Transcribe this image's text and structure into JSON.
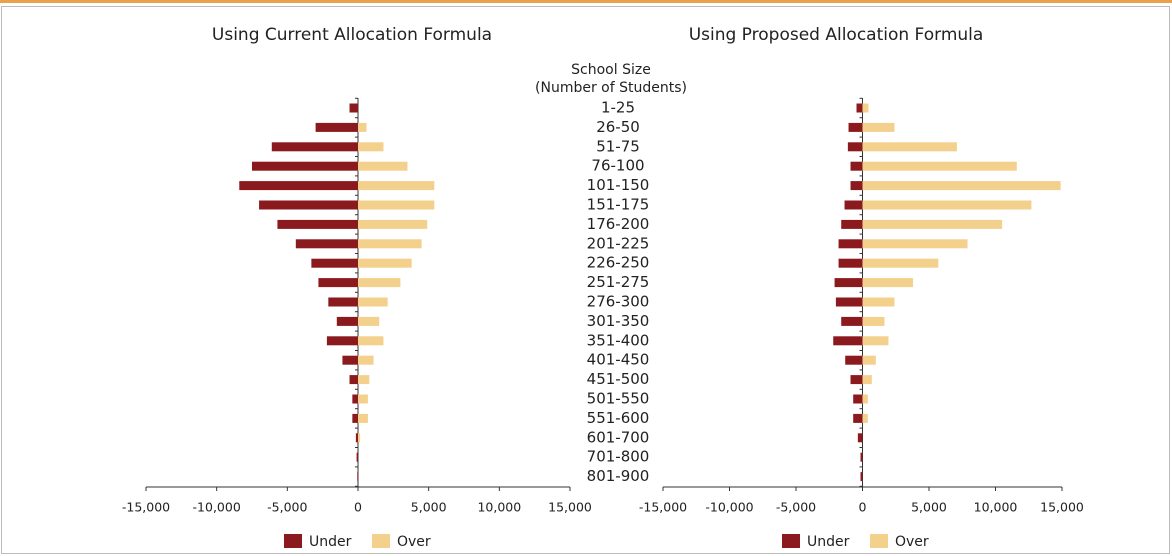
{
  "rows": {
    "title": [
      "School Size",
      "(Number of Students)"
    ],
    "categories": [
      "1-25",
      "26-50",
      "51-75",
      "76-100",
      "101-150",
      "151-175",
      "176-200",
      "201-225",
      "226-250",
      "251-275",
      "276-300",
      "301-350",
      "351-400",
      "401-450",
      "451-500",
      "501-550",
      "551-600",
      "601-700",
      "701-800",
      "801-900"
    ]
  },
  "chart_data": [
    {
      "type": "bar",
      "orientation": "horizontal",
      "title": "Using Current Allocation Formula",
      "series": [
        {
          "name": "Under",
          "color": "#8b1a1f",
          "values": [
            -600,
            -3000,
            -6100,
            -7500,
            -8400,
            -7000,
            -5700,
            -4400,
            -3300,
            -2800,
            -2100,
            -1500,
            -2200,
            -1100,
            -600,
            -400,
            -400,
            -150,
            -100,
            -50
          ]
        },
        {
          "name": "Over",
          "color": "#f3d08c",
          "values": [
            0,
            600,
            1800,
            3500,
            5400,
            5400,
            4900,
            4500,
            3800,
            3000,
            2100,
            1500,
            1800,
            1100,
            800,
            700,
            700,
            150,
            0,
            0
          ]
        }
      ],
      "xlim": [
        -15000,
        15000
      ],
      "xticks": [
        {
          "value": -15000,
          "label": "-15,000"
        },
        {
          "value": -10000,
          "label": "-10,000"
        },
        {
          "value": -5000,
          "label": "-5,000"
        },
        0,
        {
          "value": 5000,
          "label": "5,000"
        },
        {
          "value": 10000,
          "label": "10,000"
        },
        {
          "value": 15000,
          "label": "15,000"
        }
      ],
      "legend": "bottom"
    },
    {
      "type": "bar",
      "orientation": "horizontal",
      "title": "Using Proposed Allocation Formula",
      "series": [
        {
          "name": "Under",
          "color": "#8b1a1f",
          "values": [
            -450,
            -1050,
            -1100,
            -900,
            -900,
            -1350,
            -1600,
            -1800,
            -1800,
            -2100,
            -2000,
            -1600,
            -2200,
            -1300,
            -900,
            -700,
            -700,
            -350,
            -150,
            -150
          ]
        },
        {
          "name": "Over",
          "color": "#f3d08c",
          "values": [
            450,
            2400,
            7100,
            11600,
            14900,
            12700,
            10500,
            7900,
            5700,
            3800,
            2400,
            1650,
            1950,
            1000,
            700,
            400,
            400,
            0,
            0,
            0
          ]
        }
      ],
      "xlim": [
        -15000,
        15000
      ],
      "xticks": [
        {
          "value": -15000,
          "label": "-15,000"
        },
        {
          "value": -10000,
          "label": "-10,000"
        },
        {
          "value": -5000,
          "label": "-5,000"
        },
        0,
        {
          "value": 5000,
          "label": "5,000"
        },
        {
          "value": 10000,
          "label": "10,000"
        },
        {
          "value": 15000,
          "label": "15,000"
        }
      ],
      "legend": "bottom"
    }
  ]
}
